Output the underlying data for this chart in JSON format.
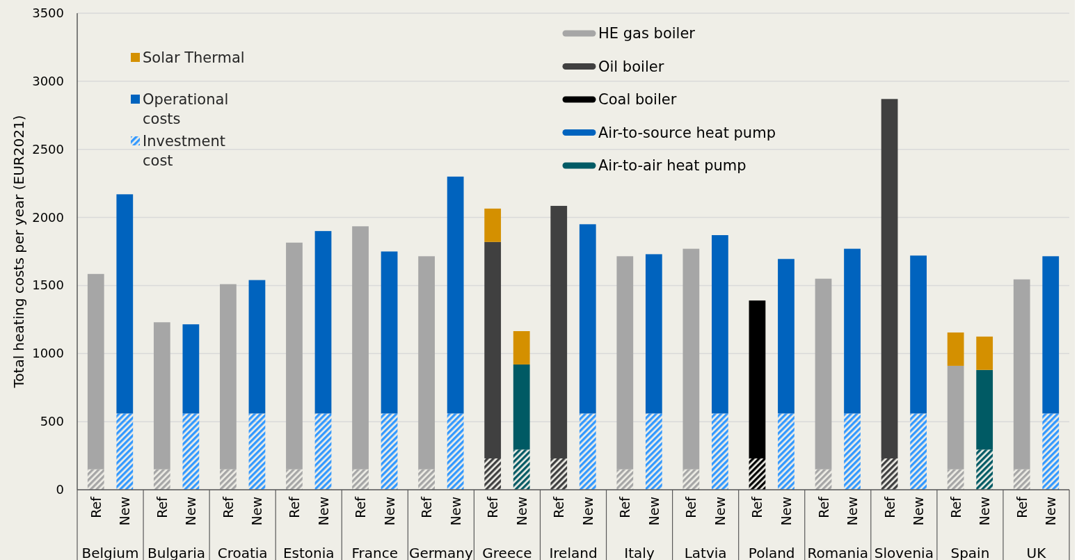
{
  "chart_data": {
    "type": "bar",
    "stacked": true,
    "ylabel": "Total heating costs per year (EUR2021)",
    "ylim": [
      0,
      3500
    ],
    "yticks": [
      0,
      500,
      1000,
      1500,
      2000,
      2500,
      3000,
      3500
    ],
    "grid": "y",
    "legend": "top",
    "categories": [
      "Ref",
      "New",
      "Ref",
      "New",
      "Ref",
      "New",
      "Ref",
      "New",
      "Ref",
      "New",
      "Ref",
      "New",
      "Ref",
      "New",
      "Ref",
      "New",
      "Ref",
      "New",
      "Ref",
      "New",
      "Ref",
      "New",
      "Ref",
      "New",
      "Ref",
      "New",
      "Ref",
      "New",
      "Ref",
      "New"
    ],
    "annotations": [
      "Operational costs",
      "Belgium",
      "Bulgaria",
      "Croatia",
      "Estonia",
      "France",
      "Germany",
      "Greece",
      "Ireland",
      "Italy",
      "Latvia",
      "Poland",
      "Romania",
      "Slovenia",
      "Spain",
      "UK"
    ],
    "series": [
      {
        "name": "Investment cost",
        "color": "#3399ff",
        "colors": [
          "#a6a6a6",
          "#3399ff",
          "#a6a6a6",
          "#3399ff",
          "#a6a6a6",
          "#3399ff",
          "#a6a6a6",
          "#3399ff",
          "#a6a6a6",
          "#3399ff",
          "#a6a6a6",
          "#3399ff",
          "#404040",
          "#005a64",
          "#404040",
          "#3399ff",
          "#a6a6a6",
          "#3399ff",
          "#a6a6a6",
          "#3399ff",
          "#000000",
          "#3399ff",
          "#a6a6a6",
          "#3399ff",
          "#404040",
          "#3399ff",
          "#a6a6a6",
          "#005a64",
          "#a6a6a6",
          "#3399ff"
        ],
        "values": [
          150,
          560,
          150,
          560,
          150,
          560,
          150,
          560,
          150,
          560,
          150,
          560,
          230,
          295,
          230,
          560,
          150,
          560,
          150,
          560,
          230,
          560,
          150,
          560,
          230,
          560,
          150,
          295,
          150,
          560
        ]
      },
      {
        "name": "HE gas boiler",
        "color": "#a6a6a6",
        "values": [
          1435,
          null,
          1080,
          null,
          1360,
          null,
          1665,
          null,
          1785,
          null,
          1565,
          null,
          null,
          null,
          null,
          null,
          1565,
          null,
          1620,
          null,
          null,
          null,
          1400,
          null,
          null,
          null,
          760,
          null,
          1395,
          null
        ]
      },
      {
        "name": "Oil boiler",
        "color": "#404040",
        "values": [
          null,
          null,
          null,
          null,
          null,
          null,
          null,
          null,
          null,
          null,
          null,
          null,
          1590,
          null,
          1855,
          null,
          null,
          null,
          null,
          null,
          null,
          null,
          null,
          null,
          2640,
          null,
          null,
          null,
          null,
          null
        ]
      },
      {
        "name": "Coal boiler",
        "color": "#000000",
        "values": [
          null,
          null,
          null,
          null,
          null,
          null,
          null,
          null,
          null,
          null,
          null,
          null,
          null,
          null,
          null,
          null,
          null,
          null,
          null,
          null,
          1160,
          null,
          null,
          null,
          null,
          null,
          null,
          null,
          null,
          null
        ]
      },
      {
        "name": "Air-to-source heat pump",
        "color": "#0063be",
        "values": [
          null,
          1610,
          null,
          655,
          null,
          980,
          null,
          1340,
          null,
          1190,
          null,
          1740,
          null,
          null,
          null,
          1390,
          null,
          1170,
          null,
          1310,
          null,
          1135,
          null,
          1210,
          null,
          1160,
          null,
          null,
          null,
          1155
        ]
      },
      {
        "name": "Air-to-air heat pump",
        "color": "#005a64",
        "values": [
          null,
          null,
          null,
          null,
          null,
          null,
          null,
          null,
          null,
          null,
          null,
          null,
          null,
          625,
          null,
          null,
          null,
          null,
          null,
          null,
          null,
          null,
          null,
          null,
          null,
          null,
          null,
          585,
          null,
          null
        ]
      },
      {
        "name": "Solar Thermal",
        "color": "#d49000",
        "values": [
          null,
          null,
          null,
          null,
          null,
          null,
          null,
          null,
          null,
          null,
          null,
          null,
          245,
          245,
          null,
          null,
          null,
          null,
          null,
          null,
          null,
          null,
          null,
          null,
          null,
          null,
          245,
          245,
          null,
          null
        ]
      }
    ]
  }
}
